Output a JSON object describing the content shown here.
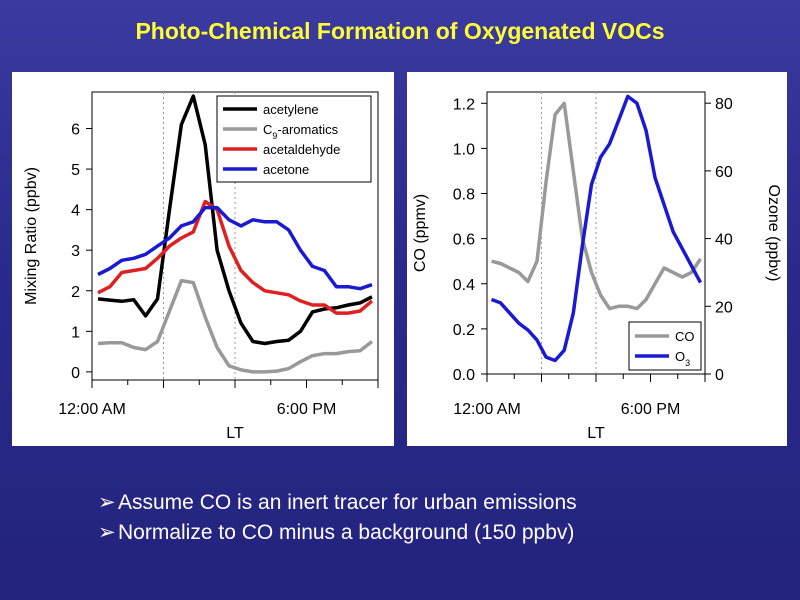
{
  "slide": {
    "title": "Photo-Chemical Formation of Oxygenated VOCs",
    "bullet_marker": "➢",
    "bullets": [
      "Assume CO is an inert tracer for urban emissions",
      "Normalize to CO minus a background (150 ppbv)"
    ],
    "colors": {
      "title": "#ffff33",
      "background": "#2a2a8c",
      "text": "#ffffff"
    }
  },
  "chart_data": [
    {
      "type": "line",
      "xlabel": "LT",
      "ylabel": "Mixing Ratio (ppbv)",
      "ylim": [
        -0.2,
        6.9
      ],
      "yticks": [
        0,
        1,
        2,
        3,
        4,
        5,
        6
      ],
      "xlim": [
        0,
        24
      ],
      "xticks": [
        {
          "value": 0,
          "label": "12:00 AM"
        },
        {
          "value": 18,
          "label": "6:00 PM"
        }
      ],
      "xminor": [
        6,
        12
      ],
      "x": [
        0,
        1,
        2,
        3,
        4,
        5,
        6,
        7,
        8,
        9,
        10,
        11,
        12,
        13,
        14,
        15,
        16,
        17,
        18,
        19,
        20,
        21,
        22,
        23
      ],
      "series": [
        {
          "name": "acetylene",
          "color": "#000000",
          "values": [
            1.8,
            1.77,
            1.74,
            1.78,
            1.38,
            1.8,
            4.0,
            6.1,
            6.8,
            5.6,
            3.0,
            2.0,
            1.2,
            0.75,
            0.7,
            0.75,
            0.78,
            1.0,
            1.48,
            1.55,
            1.58,
            1.65,
            1.7,
            1.85
          ]
        },
        {
          "name": "C9-aromatics",
          "label_main": "C",
          "label_sub": "9",
          "label_rest": "-aromatics",
          "color": "#999999",
          "values": [
            0.7,
            0.72,
            0.72,
            0.6,
            0.55,
            0.75,
            1.5,
            2.25,
            2.2,
            1.35,
            0.6,
            0.15,
            0.05,
            0.0,
            0.0,
            0.02,
            0.08,
            0.25,
            0.4,
            0.45,
            0.45,
            0.5,
            0.52,
            0.75
          ]
        },
        {
          "name": "acetaldehyde",
          "color": "#e02020",
          "values": [
            1.95,
            2.1,
            2.45,
            2.5,
            2.55,
            2.8,
            3.1,
            3.3,
            3.45,
            4.2,
            4.0,
            3.1,
            2.5,
            2.2,
            2.0,
            1.95,
            1.9,
            1.75,
            1.65,
            1.65,
            1.45,
            1.45,
            1.5,
            1.75
          ]
        },
        {
          "name": "acetone",
          "color": "#1a1ad0",
          "values": [
            2.4,
            2.55,
            2.75,
            2.8,
            2.9,
            3.1,
            3.3,
            3.6,
            3.7,
            4.05,
            4.05,
            3.75,
            3.6,
            3.75,
            3.7,
            3.7,
            3.5,
            3.0,
            2.6,
            2.5,
            2.1,
            2.1,
            2.05,
            2.15
          ]
        }
      ]
    },
    {
      "type": "line",
      "xlabel": "LT",
      "ylabel": "CO (ppmv)",
      "ylabel_right": "Ozone (ppbv)",
      "ylim": [
        0.0,
        1.25
      ],
      "yticks": [
        "0.0",
        "0.2",
        "0.4",
        "0.6",
        "0.8",
        "1.0",
        "1.2"
      ],
      "ylim_right": [
        0,
        83.3
      ],
      "yticks_right": [
        0,
        20,
        40,
        60,
        80
      ],
      "xlim": [
        0,
        24
      ],
      "xticks": [
        {
          "value": 0,
          "label": "12:00 AM"
        },
        {
          "value": 18,
          "label": "6:00 PM"
        }
      ],
      "xminor": [
        6,
        12
      ],
      "x": [
        0,
        1,
        2,
        3,
        4,
        5,
        6,
        7,
        8,
        9,
        10,
        11,
        12,
        13,
        14,
        15,
        16,
        17,
        18,
        19,
        20,
        21,
        22,
        23
      ],
      "series": [
        {
          "name": "CO",
          "axis": "left",
          "color": "#999999",
          "values": [
            0.5,
            0.49,
            0.47,
            0.45,
            0.41,
            0.5,
            0.85,
            1.15,
            1.2,
            0.9,
            0.6,
            0.45,
            0.35,
            0.29,
            0.3,
            0.3,
            0.29,
            0.33,
            0.4,
            0.47,
            0.45,
            0.43,
            0.45,
            0.51
          ]
        },
        {
          "name": "O3",
          "label_main": "O",
          "label_sub": "3",
          "label_rest": "",
          "axis": "right",
          "color": "#1a1ad0",
          "values": [
            22,
            21,
            18,
            15,
            13,
            10,
            5,
            4,
            7,
            18,
            38,
            56,
            64,
            68,
            75,
            82,
            80,
            72,
            58,
            50,
            42,
            37,
            32,
            27
          ]
        }
      ]
    }
  ]
}
